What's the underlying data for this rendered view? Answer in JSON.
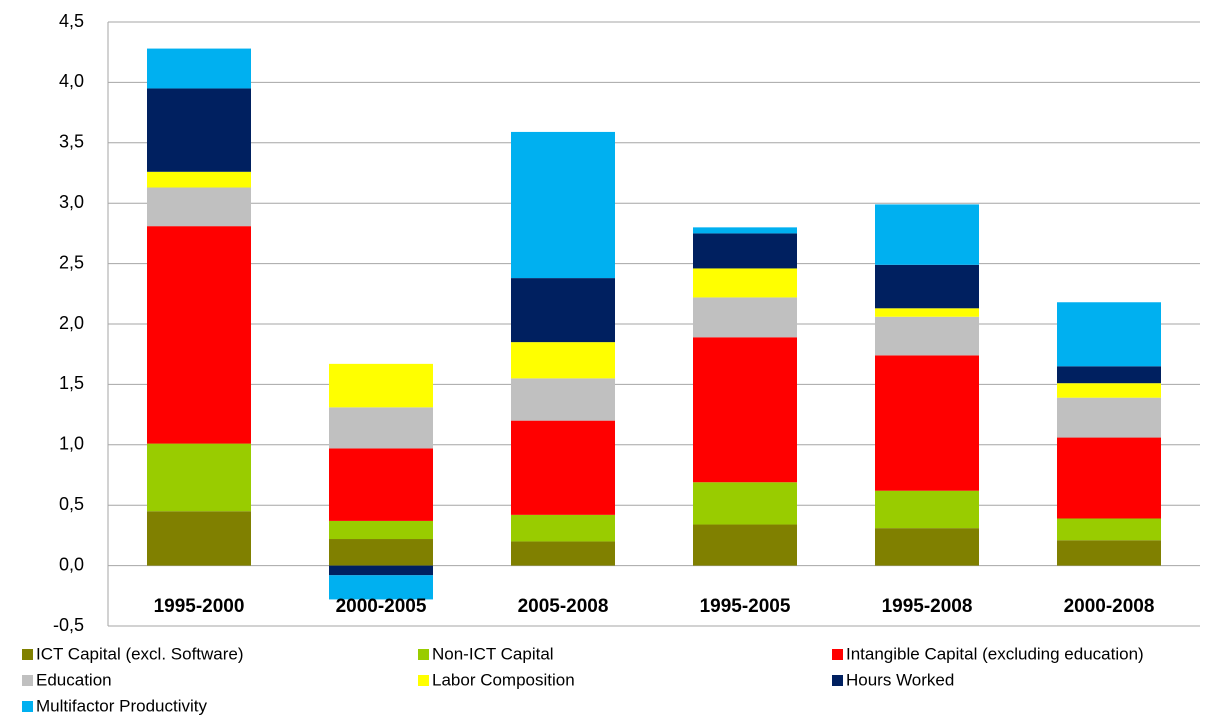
{
  "chart_data": {
    "type": "stacked_bar",
    "categories": [
      "1995-2000",
      "2000-2005",
      "2005-2008",
      "1995-2005",
      "1995-2008",
      "2000-2008"
    ],
    "series": [
      {
        "name": "ICT Capital (excl. Software)",
        "color": "#808000",
        "values": [
          0.45,
          0.22,
          0.2,
          0.34,
          0.31,
          0.21
        ]
      },
      {
        "name": "Non-ICT Capital",
        "color": "#99cc00",
        "values": [
          0.56,
          0.15,
          0.22,
          0.35,
          0.31,
          0.18
        ]
      },
      {
        "name": "Intangible Capital (excluding  education)",
        "color": "#ff0000",
        "values": [
          1.8,
          0.6,
          0.78,
          1.2,
          1.12,
          0.67
        ]
      },
      {
        "name": "Education",
        "color": "#c0c0c0",
        "values": [
          0.32,
          0.34,
          0.35,
          0.33,
          0.32,
          0.33
        ]
      },
      {
        "name": "Labor Composition",
        "color": "#ffff00",
        "values": [
          0.13,
          0.36,
          0.3,
          0.24,
          0.07,
          0.12
        ]
      },
      {
        "name": "Hours Worked",
        "color": "#002060",
        "values": [
          0.69,
          -0.08,
          0.53,
          0.29,
          0.36,
          0.14
        ]
      },
      {
        "name": "Multifactor Productivity",
        "color": "#00b0f0",
        "values": [
          0.33,
          -0.2,
          1.21,
          0.05,
          0.5,
          0.53
        ]
      }
    ],
    "ylim": [
      -0.5,
      4.5
    ],
    "yticks": [
      {
        "value": -0.5,
        "label": "-0,5"
      },
      {
        "value": 0,
        "label": "0,0"
      },
      {
        "value": 0.5,
        "label": "0,5"
      },
      {
        "value": 1,
        "label": "1,0"
      },
      {
        "value": 1.5,
        "label": "1,5"
      },
      {
        "value": 2,
        "label": "2,0"
      },
      {
        "value": 2.5,
        "label": "2,5"
      },
      {
        "value": 3,
        "label": "3,0"
      },
      {
        "value": 3.5,
        "label": "3,5"
      },
      {
        "value": 4,
        "label": "4,0"
      },
      {
        "value": 4.5,
        "label": "4,5"
      }
    ],
    "grid": true,
    "legend": "bottom"
  }
}
